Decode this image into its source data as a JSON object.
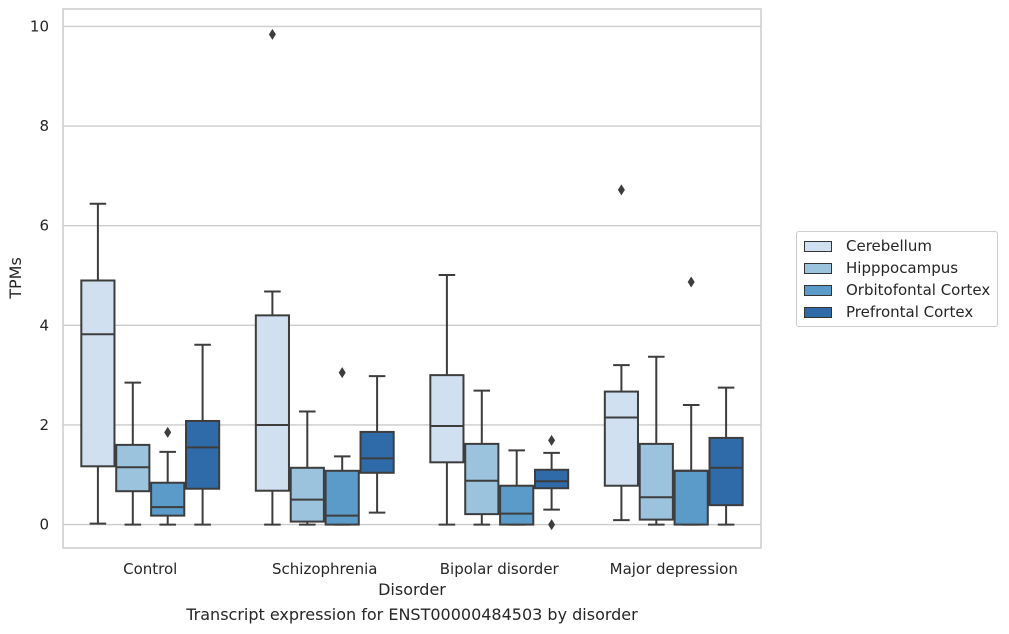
{
  "chart_data": {
    "type": "box",
    "xlabel": "Disorder",
    "ylabel": "TPMs",
    "caption": "Transcript expression for ENST00000484503 by disorder",
    "ylim": [
      -0.47,
      10.35
    ],
    "yticks": [
      0,
      2,
      4,
      6,
      8,
      10
    ],
    "grid": "horizontal",
    "legend_position": "right",
    "categories": [
      "Control",
      "Schizophrenia",
      "Bipolar disorder",
      "Major depression"
    ],
    "series": [
      {
        "name": "Cerebellum",
        "color": "#d0e0f1",
        "boxes": [
          {
            "q1": 1.17,
            "median": 3.82,
            "q3": 4.9,
            "whisker_low": 0.02,
            "whisker_high": 6.44,
            "outliers": []
          },
          {
            "q1": 0.68,
            "median": 2.0,
            "q3": 4.2,
            "whisker_low": 0.0,
            "whisker_high": 4.68,
            "outliers": [
              9.84
            ]
          },
          {
            "q1": 1.25,
            "median": 1.98,
            "q3": 3.0,
            "whisker_low": 0.0,
            "whisker_high": 5.01,
            "outliers": []
          },
          {
            "q1": 0.78,
            "median": 2.15,
            "q3": 2.67,
            "whisker_low": 0.09,
            "whisker_high": 3.2,
            "outliers": [
              6.72
            ]
          }
        ]
      },
      {
        "name": "Hipppocampus",
        "color": "#9cc3dd",
        "boxes": [
          {
            "q1": 0.67,
            "median": 1.15,
            "q3": 1.6,
            "whisker_low": 0.0,
            "whisker_high": 2.85,
            "outliers": []
          },
          {
            "q1": 0.06,
            "median": 0.5,
            "q3": 1.14,
            "whisker_low": 0.0,
            "whisker_high": 2.27,
            "outliers": []
          },
          {
            "q1": 0.21,
            "median": 0.88,
            "q3": 1.62,
            "whisker_low": 0.0,
            "whisker_high": 2.69,
            "outliers": []
          },
          {
            "q1": 0.1,
            "median": 0.55,
            "q3": 1.62,
            "whisker_low": 0.0,
            "whisker_high": 3.37,
            "outliers": []
          }
        ]
      },
      {
        "name": "Orbitofontal Cortex",
        "color": "#5b9bc9",
        "boxes": [
          {
            "q1": 0.18,
            "median": 0.35,
            "q3": 0.84,
            "whisker_low": 0.0,
            "whisker_high": 1.46,
            "outliers": [
              1.85
            ]
          },
          {
            "q1": 0.0,
            "median": 0.18,
            "q3": 1.08,
            "whisker_low": 0.0,
            "whisker_high": 1.37,
            "outliers": [
              3.05
            ]
          },
          {
            "q1": 0.0,
            "median": 0.22,
            "q3": 0.78,
            "whisker_low": 0.0,
            "whisker_high": 1.49,
            "outliers": []
          },
          {
            "q1": 0.0,
            "median": 1.08,
            "q3": 1.08,
            "whisker_low": 0.0,
            "whisker_high": 2.4,
            "outliers": [
              4.87
            ]
          }
        ]
      },
      {
        "name": "Prefrontal Cortex",
        "color": "#2f6ba9",
        "boxes": [
          {
            "q1": 0.72,
            "median": 1.55,
            "q3": 2.08,
            "whisker_low": 0.0,
            "whisker_high": 3.61,
            "outliers": []
          },
          {
            "q1": 1.04,
            "median": 1.33,
            "q3": 1.86,
            "whisker_low": 0.24,
            "whisker_high": 2.98,
            "outliers": []
          },
          {
            "q1": 0.73,
            "median": 0.87,
            "q3": 1.1,
            "whisker_low": 0.3,
            "whisker_high": 1.44,
            "outliers": [
              1.69,
              0.0
            ]
          },
          {
            "q1": 0.39,
            "median": 1.14,
            "q3": 1.74,
            "whisker_low": 0.0,
            "whisker_high": 2.75,
            "outliers": []
          }
        ]
      }
    ]
  }
}
